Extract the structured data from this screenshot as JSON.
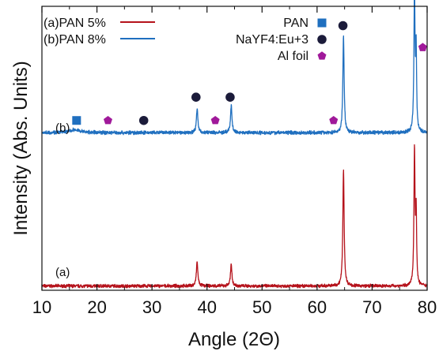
{
  "chart_data": {
    "type": "line",
    "xlabel": "Angle (2Θ)",
    "ylabel": "Intensity (Abs. Units)",
    "xlim": [
      10,
      80
    ],
    "ylim": [
      0,
      100
    ],
    "x_ticks": [
      "10",
      "20",
      "30",
      "40",
      "50",
      "60",
      "70",
      "80"
    ],
    "y_ticks_shown": false,
    "grid": false,
    "legend_position": "top",
    "series": [
      {
        "name": "(a)PAN 5%",
        "curve_label": "(a)",
        "color": "#b5121b",
        "baseline": 1.5,
        "noise": 0.45,
        "peaks": [
          {
            "x": 38.2,
            "height": 8.5,
            "width": 0.16
          },
          {
            "x": 44.4,
            "height": 7.5,
            "width": 0.16
          },
          {
            "x": 64.8,
            "height": 41,
            "width": 0.14
          },
          {
            "x": 77.7,
            "height": 47.5,
            "width": 0.12
          },
          {
            "x": 78.0,
            "height": 25,
            "width": 0.1
          }
        ]
      },
      {
        "name": "(b)PAN 8%",
        "curve_label": "(b)",
        "color": "#1f6fbf",
        "baseline": 55.5,
        "noise": 0.5,
        "peaks": [
          {
            "x": 16.0,
            "height": 1.0,
            "width": 1.2
          },
          {
            "x": 38.2,
            "height": 8.5,
            "width": 0.16
          },
          {
            "x": 44.4,
            "height": 9.5,
            "width": 0.16
          },
          {
            "x": 64.8,
            "height": 34,
            "width": 0.14
          },
          {
            "x": 77.7,
            "height": 50,
            "width": 0.12
          },
          {
            "x": 78.0,
            "height": 28,
            "width": 0.1
          }
        ]
      }
    ],
    "markers": [
      {
        "name": "PAN",
        "shape": "square",
        "color": "#1f6fbf",
        "points": [
          {
            "x": 16.3,
            "y": 59.8
          }
        ]
      },
      {
        "name": "NaYF4:Eu+3",
        "shape": "circle",
        "color": "#1b1b3a",
        "points": [
          {
            "x": 28.5,
            "y": 59.8
          },
          {
            "x": 38.0,
            "y": 68.0
          },
          {
            "x": 44.2,
            "y": 68.0
          },
          {
            "x": 64.7,
            "y": 93.2
          },
          {
            "x": 77.8,
            "y": 104.5
          }
        ]
      },
      {
        "name": "Al foil",
        "shape": "pentagon",
        "color": "#a0199a",
        "points": [
          {
            "x": 22.0,
            "y": 59.8
          },
          {
            "x": 41.5,
            "y": 59.8
          },
          {
            "x": 63.0,
            "y": 59.8
          },
          {
            "x": 79.2,
            "y": 85.5
          }
        ]
      }
    ]
  }
}
